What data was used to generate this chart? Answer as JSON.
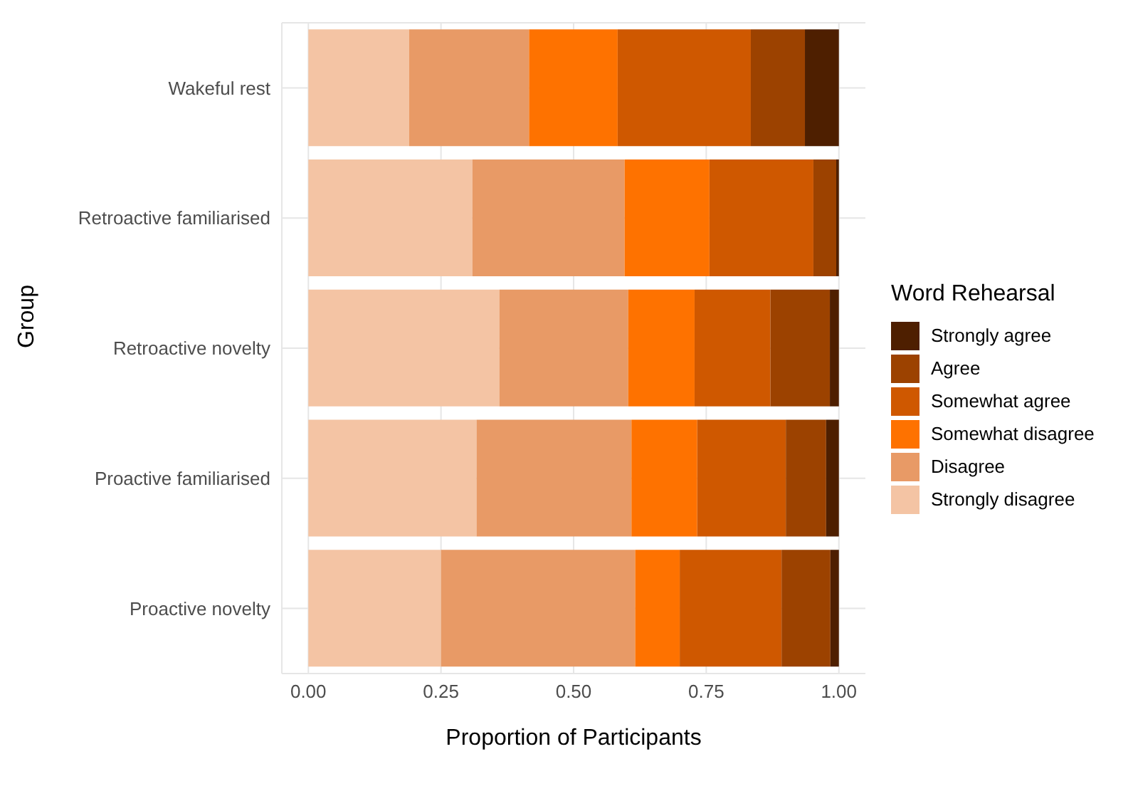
{
  "chart_data": {
    "type": "bar",
    "orientation": "horizontal",
    "stacked": true,
    "xlabel": "Proportion of Participants",
    "ylabel": "Group",
    "legend_title": "Word Rehearsal",
    "legend": "right",
    "grid": true,
    "categories": [
      "Wakeful rest",
      "Retroactive familiarised",
      "Retroactive novelty",
      "Proactive familiarised",
      "Proactive novelty"
    ],
    "xlim": [
      -0.05,
      1.05
    ],
    "xticks": [
      {
        "value": 0,
        "label": "0.00"
      },
      {
        "value": 0.25,
        "label": "0.25"
      },
      {
        "value": 0.5,
        "label": "0.50"
      },
      {
        "value": 0.75,
        "label": "0.75"
      },
      {
        "value": 1,
        "label": "1.00"
      }
    ],
    "series": [
      {
        "name": "Strongly disagree",
        "color": "#f4c4a4",
        "values": [
          0.19,
          0.309,
          0.36,
          0.317,
          0.25
        ]
      },
      {
        "name": "Disagree",
        "color": "#e89a66",
        "values": [
          0.226,
          0.287,
          0.243,
          0.292,
          0.366
        ]
      },
      {
        "name": "Somewhat disagree",
        "color": "#fe7200",
        "values": [
          0.167,
          0.16,
          0.125,
          0.124,
          0.084
        ]
      },
      {
        "name": "Somewhat agree",
        "color": "#cf5800",
        "values": [
          0.251,
          0.196,
          0.143,
          0.167,
          0.192
        ]
      },
      {
        "name": "Agree",
        "color": "#9c4200",
        "values": [
          0.102,
          0.043,
          0.112,
          0.076,
          0.092
        ]
      },
      {
        "name": "Strongly agree",
        "color": "#4e1f00",
        "values": [
          0.064,
          0.005,
          0.017,
          0.024,
          0.016
        ]
      }
    ]
  }
}
